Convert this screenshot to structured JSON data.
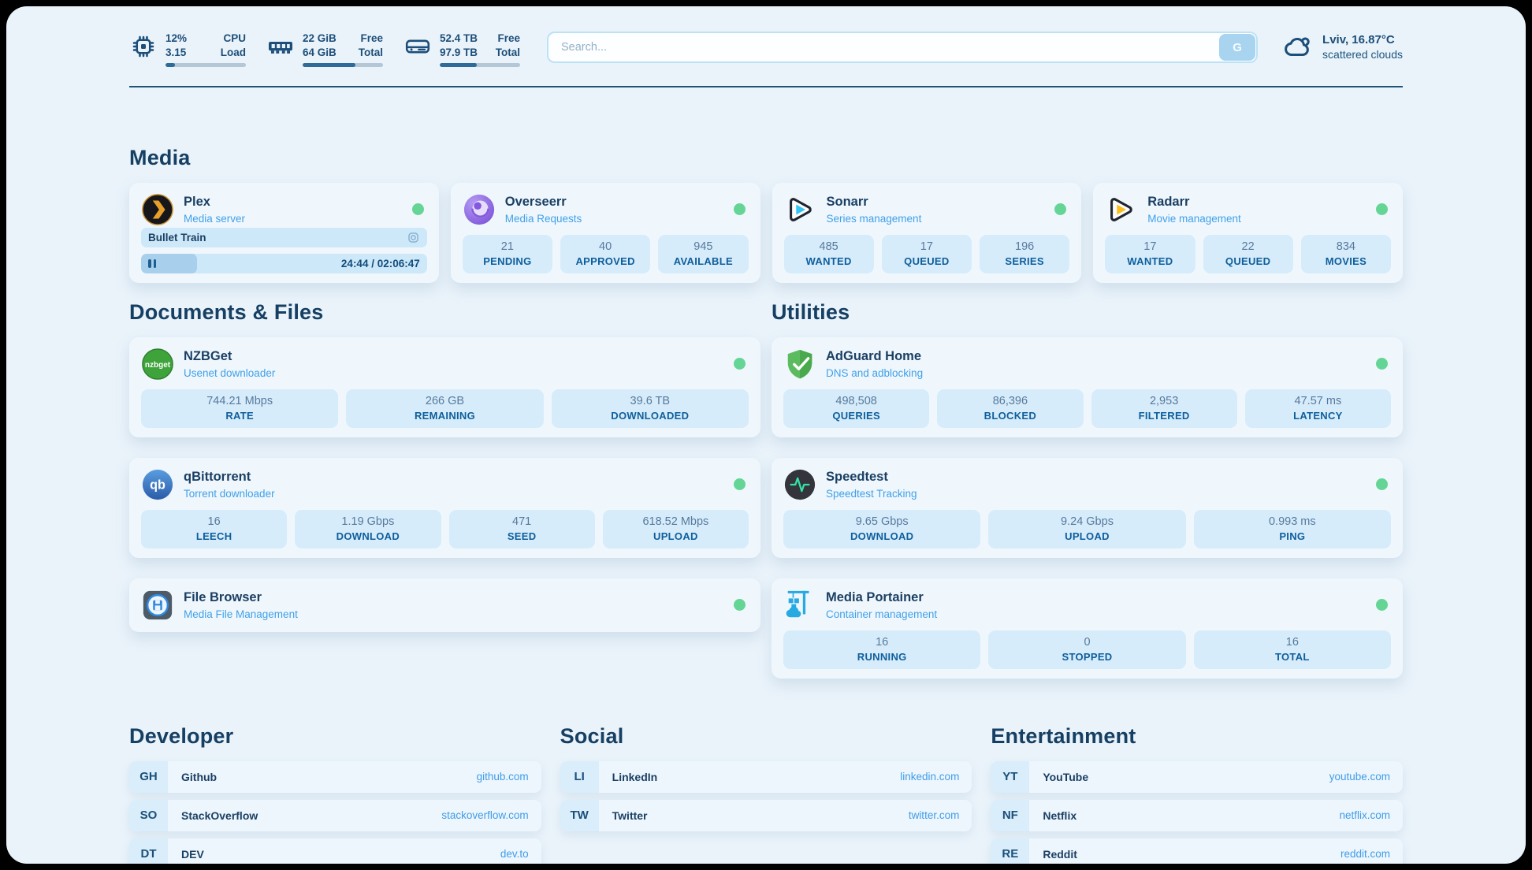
{
  "colors": {
    "accent": "#41a0e8",
    "status_online": "#65d596",
    "navy": "#1c4e79"
  },
  "topbar": {
    "cpu": {
      "value": "12%",
      "sub": "3.15",
      "label_top": "CPU",
      "label_bottom": "Load",
      "percent": 12
    },
    "ram": {
      "value": "22 GiB",
      "sub": "64 GiB",
      "label_top": "Free",
      "label_bottom": "Total",
      "percent": 66
    },
    "disk": {
      "value": "52.4 TB",
      "sub": "97.9 TB",
      "label_top": "Free",
      "label_bottom": "Total",
      "percent": 46
    },
    "search": {
      "placeholder": "Search...",
      "button_label": "G"
    },
    "weather": {
      "location": "Lviv, 16.87°C",
      "condition": "scattered clouds"
    }
  },
  "media": {
    "title": "Media",
    "plex": {
      "name": "Plex",
      "subtitle": "Media server",
      "now_playing": "Bullet Train",
      "time": "24:44 / 02:06:47",
      "progress_percent": 19.5
    },
    "apps": [
      {
        "name": "Overseerr",
        "subtitle": "Media Requests",
        "stats": [
          {
            "value": "21",
            "label": "PENDING"
          },
          {
            "value": "40",
            "label": "APPROVED"
          },
          {
            "value": "945",
            "label": "AVAILABLE"
          }
        ]
      },
      {
        "name": "Sonarr",
        "subtitle": "Series management",
        "stats": [
          {
            "value": "485",
            "label": "WANTED"
          },
          {
            "value": "17",
            "label": "QUEUED"
          },
          {
            "value": "196",
            "label": "SERIES"
          }
        ]
      },
      {
        "name": "Radarr",
        "subtitle": "Movie management",
        "stats": [
          {
            "value": "17",
            "label": "WANTED"
          },
          {
            "value": "22",
            "label": "QUEUED"
          },
          {
            "value": "834",
            "label": "MOVIES"
          }
        ]
      }
    ]
  },
  "documents": {
    "title": "Documents & Files",
    "apps": [
      {
        "name": "NZBGet",
        "subtitle": "Usenet downloader",
        "stats": [
          {
            "value": "744.21 Mbps",
            "label": "RATE"
          },
          {
            "value": "266 GB",
            "label": "REMAINING"
          },
          {
            "value": "39.6 TB",
            "label": "DOWNLOADED"
          }
        ]
      },
      {
        "name": "qBittorrent",
        "subtitle": "Torrent downloader",
        "stats": [
          {
            "value": "16",
            "label": "LEECH"
          },
          {
            "value": "1.19 Gbps",
            "label": "DOWNLOAD"
          },
          {
            "value": "471",
            "label": "SEED"
          },
          {
            "value": "618.52 Mbps",
            "label": "UPLOAD"
          }
        ]
      },
      {
        "name": "File Browser",
        "subtitle": "Media File Management",
        "stats": []
      }
    ]
  },
  "utilities": {
    "title": "Utilities",
    "apps": [
      {
        "name": "AdGuard Home",
        "subtitle": "DNS and adblocking",
        "stats": [
          {
            "value": "498,508",
            "label": "QUERIES"
          },
          {
            "value": "86,396",
            "label": "BLOCKED"
          },
          {
            "value": "2,953",
            "label": "FILTERED"
          },
          {
            "value": "47.57 ms",
            "label": "LATENCY"
          }
        ]
      },
      {
        "name": "Speedtest",
        "subtitle": "Speedtest Tracking",
        "stats": [
          {
            "value": "9.65 Gbps",
            "label": "DOWNLOAD"
          },
          {
            "value": "9.24 Gbps",
            "label": "UPLOAD"
          },
          {
            "value": "0.993 ms",
            "label": "PING"
          }
        ]
      },
      {
        "name": "Media Portainer",
        "subtitle": "Container management",
        "stats": [
          {
            "value": "16",
            "label": "RUNNING"
          },
          {
            "value": "0",
            "label": "STOPPED"
          },
          {
            "value": "16",
            "label": "TOTAL"
          }
        ]
      }
    ]
  },
  "bookmarks": [
    {
      "title": "Developer",
      "links": [
        {
          "abbr": "GH",
          "name": "Github",
          "url": "github.com"
        },
        {
          "abbr": "SO",
          "name": "StackOverflow",
          "url": "stackoverflow.com"
        },
        {
          "abbr": "DT",
          "name": "DEV",
          "url": "dev.to"
        }
      ]
    },
    {
      "title": "Social",
      "links": [
        {
          "abbr": "LI",
          "name": "LinkedIn",
          "url": "linkedin.com"
        },
        {
          "abbr": "TW",
          "name": "Twitter",
          "url": "twitter.com"
        }
      ]
    },
    {
      "title": "Entertainment",
      "links": [
        {
          "abbr": "YT",
          "name": "YouTube",
          "url": "youtube.com"
        },
        {
          "abbr": "NF",
          "name": "Netflix",
          "url": "netflix.com"
        },
        {
          "abbr": "RE",
          "name": "Reddit",
          "url": "reddit.com"
        }
      ]
    }
  ]
}
